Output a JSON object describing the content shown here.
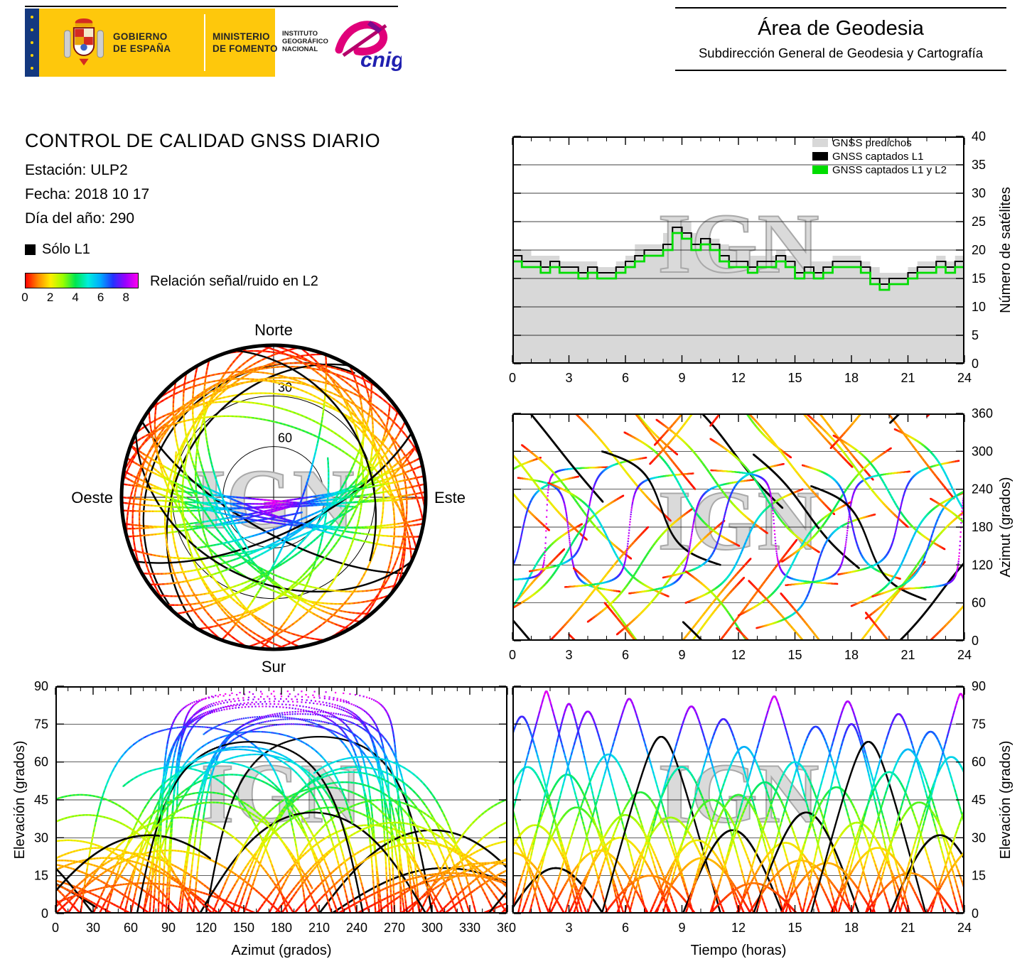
{
  "header": {
    "gobierno_line1": "GOBIERNO",
    "gobierno_line2": "DE ESPAÑA",
    "ministerio_line1": "MINISTERIO",
    "ministerio_line2": "DE FOMENTO",
    "ign_line1": "INSTITUTO",
    "ign_line2": "GEOGRÁFICO",
    "ign_line3": "NACIONAL",
    "cnig_label": "cnig",
    "area_title": "Área de Geodesia",
    "area_subtitle": "Subdirección General de Geodesia y Cartografía",
    "banner_yellow": "#fec80c",
    "flag_blue": "#14387f"
  },
  "info": {
    "title": "CONTROL DE CALIDAD GNSS DIARIO",
    "station": "Estación: ULP2",
    "date": "Fecha: 2018 10 17",
    "doy": "Día del año: 290",
    "l1_legend": "Sólo L1",
    "colorbar_label": "Relación señal/ruido en L2",
    "colorbar_ticks": [
      0,
      2,
      4,
      6,
      8
    ],
    "colorbar_max": 9
  },
  "skyplot": {
    "north": "Norte",
    "south": "Sur",
    "east": "Este",
    "west": "Oeste",
    "rings": [
      {
        "elevation": 30,
        "label": "30"
      },
      {
        "elevation": 60,
        "label": "60"
      }
    ],
    "watermark": "IGN"
  },
  "colormap": {
    "min": 0,
    "max": 9,
    "stops": [
      "#ff0000",
      "#ff8800",
      "#ffee00",
      "#99ff00",
      "#00e650",
      "#00eedd",
      "#00aaff",
      "#2233ff",
      "#9900ff",
      "#ff00ee"
    ]
  },
  "chart_data": [
    {
      "id": "sat-count",
      "type": "line",
      "xlabel": "",
      "ylabel": "Número de satélites",
      "xlim": [
        0,
        24
      ],
      "ylim": [
        0,
        40
      ],
      "xticks": [
        0,
        3,
        6,
        9,
        12,
        15,
        18,
        21,
        24
      ],
      "yticks": [
        0,
        5,
        10,
        15,
        20,
        25,
        30,
        35,
        40
      ],
      "yside": "right",
      "xminor": 1,
      "grid": "horizontal",
      "legend_position": "top-right",
      "watermark": "IGN",
      "x_step": 0.5,
      "series": [
        {
          "name": "GNSS predichos",
          "color": "#d8d8d8",
          "style": "filled-steps",
          "values": [
            20,
            20,
            19,
            19,
            19,
            18,
            18,
            18,
            18,
            17,
            17,
            18,
            19,
            21,
            21,
            21,
            23,
            26,
            25,
            23,
            23,
            22,
            21,
            20,
            19,
            19,
            19,
            19,
            20,
            19,
            18,
            18,
            18,
            18,
            19,
            19,
            19,
            18,
            17,
            16,
            16,
            16,
            17,
            18,
            18,
            19,
            18,
            19,
            20
          ]
        },
        {
          "name": "GNSS captados L1",
          "color": "#000000",
          "style": "steps",
          "values": [
            19,
            18,
            18,
            17,
            18,
            17,
            17,
            16,
            17,
            16,
            16,
            17,
            18,
            19,
            20,
            20,
            21,
            24,
            23,
            21,
            22,
            21,
            19,
            18,
            18,
            17,
            18,
            18,
            19,
            18,
            16,
            17,
            16,
            17,
            18,
            18,
            18,
            17,
            15,
            14,
            15,
            15,
            16,
            17,
            17,
            18,
            17,
            18,
            19
          ]
        },
        {
          "name": "GNSS captados L1 y L2",
          "color": "#00dd00",
          "style": "steps",
          "values": [
            18,
            17,
            17,
            16,
            17,
            16,
            16,
            15,
            16,
            15,
            15,
            16,
            17,
            18,
            19,
            19,
            20,
            23,
            22,
            20,
            21,
            20,
            18,
            17,
            17,
            16,
            17,
            17,
            18,
            17,
            15,
            16,
            15,
            16,
            17,
            17,
            17,
            16,
            14,
            13,
            14,
            14,
            15,
            16,
            16,
            17,
            16,
            17,
            18
          ]
        }
      ]
    },
    {
      "id": "azimuth-time",
      "type": "scatter",
      "xlabel": "",
      "ylabel": "Azimut (grados)",
      "xlim": [
        0,
        24
      ],
      "ylim": [
        0,
        360
      ],
      "xticks": [
        0,
        3,
        6,
        9,
        12,
        15,
        18,
        21,
        24
      ],
      "yticks": [
        0,
        60,
        120,
        180,
        240,
        300,
        360
      ],
      "yside": "right",
      "xminor": 1,
      "grid": "horizontal",
      "watermark": "IGN",
      "series_source": "passes",
      "x_field": "time_hours",
      "y_field": "azimuth_deg"
    },
    {
      "id": "elevation-azimuth",
      "type": "scatter",
      "xlabel": "Azimut (grados)",
      "ylabel": "Elevación (grados)",
      "xlim": [
        0,
        360
      ],
      "ylim": [
        0,
        90
      ],
      "xticks": [
        0,
        30,
        60,
        90,
        120,
        150,
        180,
        210,
        240,
        270,
        300,
        330,
        360
      ],
      "yticks": [
        0,
        15,
        30,
        45,
        60,
        75,
        90
      ],
      "yside": "left",
      "xminor": 10,
      "grid": "horizontal",
      "watermark": "IGN",
      "series_source": "passes",
      "x_field": "azimuth_deg",
      "y_field": "elevation_deg"
    },
    {
      "id": "elevation-time",
      "type": "scatter",
      "xlabel": "Tiempo (horas)",
      "ylabel": "Elevación (grados)",
      "xlim": [
        0,
        24
      ],
      "ylim": [
        0,
        90
      ],
      "xticks": [
        0,
        3,
        6,
        9,
        12,
        15,
        18,
        21,
        24
      ],
      "yticks": [
        0,
        15,
        30,
        45,
        60,
        75,
        90
      ],
      "yside": "right",
      "xminor": 1,
      "grid": "horizontal",
      "watermark": "IGN",
      "series_source": "passes",
      "x_field": "time_hours",
      "y_field": "elevation_deg"
    }
  ],
  "passes": [
    {
      "t0": -1.5,
      "dur": 6.0,
      "el": 70,
      "az": 200,
      "dir": 1,
      "c": 1.4
    },
    {
      "t0": -0.8,
      "dur": 5.5,
      "el": 34,
      "az": 265,
      "dir": -1,
      "c": 0.3
    },
    {
      "t0": 0.0,
      "dur": 5.5,
      "el": 24,
      "az": 55,
      "dir": 1,
      "c": 0.0
    },
    {
      "t0": 0.5,
      "dur": 6.0,
      "el": 78,
      "az": 170,
      "dir": 1,
      "c": 1.5
    },
    {
      "t0": 0.8,
      "dur": 5.8,
      "el": 58,
      "az": 95,
      "dir": 1,
      "c": 0.9
    },
    {
      "t0": 1.2,
      "dur": 5.5,
      "el": 35,
      "az": 250,
      "dir": -1,
      "c": 0.0
    },
    {
      "t0": 1.8,
      "dur": 6.5,
      "el": 88,
      "az": 185,
      "dir": 1,
      "c": 2.0
    },
    {
      "t0": 2.3,
      "dur": 5.0,
      "el": 18,
      "az": 310,
      "dir": -1,
      "c": 0.0,
      "l1_only": true
    },
    {
      "t0": 2.9,
      "dur": 6.0,
      "el": 55,
      "az": 140,
      "dir": 1,
      "c": 0.5
    },
    {
      "t0": 3.0,
      "dur": 5.4,
      "el": 83,
      "az": 168,
      "dir": -1,
      "c": 1.9
    },
    {
      "t0": 3.4,
      "dur": 5.8,
      "el": 42,
      "az": 220,
      "dir": -1,
      "c": 1.0
    },
    {
      "t0": 4.0,
      "dur": 6.2,
      "el": 80,
      "az": 200,
      "dir": 1,
      "c": 2.0
    },
    {
      "t0": 4.6,
      "dur": 5.2,
      "el": 25,
      "az": 90,
      "dir": 1,
      "c": 0.0
    },
    {
      "t0": 5.1,
      "dur": 6.4,
      "el": 63,
      "az": 160,
      "dir": -1,
      "c": 1.0
    },
    {
      "t0": 5.7,
      "dur": 5.4,
      "el": 30,
      "az": 280,
      "dir": -1,
      "c": 0.0
    },
    {
      "t0": 6.0,
      "dur": 5.5,
      "el": 39,
      "az": 25,
      "dir": -1,
      "c": 0.4
    },
    {
      "t0": 6.2,
      "dur": 6.8,
      "el": 85,
      "az": 175,
      "dir": 1,
      "c": 1.8
    },
    {
      "t0": 6.8,
      "dur": 5.6,
      "el": 48,
      "az": 120,
      "dir": 1,
      "c": 0.5
    },
    {
      "t0": 7.3,
      "dur": 4.8,
      "el": 15,
      "az": 330,
      "dir": -1,
      "c": 0.0
    },
    {
      "t0": 7.9,
      "dur": 6.3,
      "el": 70,
      "az": 210,
      "dir": -1,
      "c": 1.5,
      "l1_only": true
    },
    {
      "t0": 8.4,
      "dur": 5.7,
      "el": 38,
      "az": 100,
      "dir": 1,
      "c": 0.3
    },
    {
      "t0": 9.0,
      "dur": 6.1,
      "el": 58,
      "az": 240,
      "dir": -1,
      "c": 0.8
    },
    {
      "t0": 9.5,
      "dur": 6.6,
      "el": 82,
      "az": 165,
      "dir": 1,
      "c": 2.0
    },
    {
      "t0": 9.8,
      "dur": 5.0,
      "el": 29,
      "az": 10,
      "dir": 1,
      "c": 0.1
    },
    {
      "t0": 10.1,
      "dur": 5.1,
      "el": 22,
      "az": 40,
      "dir": 1,
      "c": 0.0
    },
    {
      "t0": 10.6,
      "dur": 5.9,
      "el": 45,
      "az": 260,
      "dir": -1,
      "c": 0.6
    },
    {
      "t0": 11.2,
      "dur": 6.4,
      "el": 77,
      "az": 190,
      "dir": 1,
      "c": 1.7
    },
    {
      "t0": 11.7,
      "dur": 5.3,
      "el": 33,
      "az": 300,
      "dir": -1,
      "c": 0.2,
      "l1_only": true
    },
    {
      "t0": 12.0,
      "dur": 5.6,
      "el": 47,
      "az": 20,
      "dir": -1,
      "c": 0.5
    },
    {
      "t0": 12.3,
      "dur": 6.2,
      "el": 66,
      "az": 150,
      "dir": 1,
      "c": 1.2
    },
    {
      "t0": 12.8,
      "dur": 4.6,
      "el": 12,
      "az": 70,
      "dir": 1,
      "c": 0.0
    },
    {
      "t0": 13.4,
      "dur": 5.8,
      "el": 52,
      "az": 230,
      "dir": -1,
      "c": 0.7
    },
    {
      "t0": 13.9,
      "dur": 6.7,
      "el": 86,
      "az": 180,
      "dir": -1,
      "c": 2.0
    },
    {
      "t0": 14.5,
      "dur": 5.2,
      "el": 28,
      "az": 290,
      "dir": -1,
      "c": 0.1
    },
    {
      "t0": 15.0,
      "dur": 6.0,
      "el": 60,
      "az": 130,
      "dir": 1,
      "c": 1.0
    },
    {
      "t0": 15.3,
      "dur": 5.5,
      "el": 21,
      "az": 5,
      "dir": -1,
      "c": 0.0
    },
    {
      "t0": 15.6,
      "dur": 5.6,
      "el": 40,
      "az": 205,
      "dir": -1,
      "c": 0.4,
      "l1_only": true
    },
    {
      "t0": 16.1,
      "dur": 6.3,
      "el": 74,
      "az": 110,
      "dir": 1,
      "c": 1.6
    },
    {
      "t0": 16.7,
      "dur": 4.9,
      "el": 20,
      "az": 345,
      "dir": -1,
      "c": 0.0
    },
    {
      "t0": 17.2,
      "dur": 5.8,
      "el": 50,
      "az": 215,
      "dir": 1,
      "c": 0.6
    },
    {
      "t0": 17.8,
      "dur": 6.6,
      "el": 84,
      "az": 178,
      "dir": 1,
      "c": 1.9
    },
    {
      "t0": 18.0,
      "dur": 5.2,
      "el": 75,
      "az": 188,
      "dir": -1,
      "c": 1.9
    },
    {
      "t0": 18.3,
      "dur": 5.4,
      "el": 36,
      "az": 270,
      "dir": -1,
      "c": 0.3
    },
    {
      "t0": 18.9,
      "dur": 6.1,
      "el": 68,
      "az": 155,
      "dir": -1,
      "c": 1.3,
      "l1_only": true
    },
    {
      "t0": 19.4,
      "dur": 5.0,
      "el": 26,
      "az": 35,
      "dir": 1,
      "c": 0.0
    },
    {
      "t0": 20.0,
      "dur": 5.9,
      "el": 56,
      "az": 235,
      "dir": -1,
      "c": 0.8
    },
    {
      "t0": 20.5,
      "dur": 6.4,
      "el": 79,
      "az": 195,
      "dir": 1,
      "c": 1.8
    },
    {
      "t0": 21.0,
      "dur": 6.0,
      "el": 65,
      "az": 145,
      "dir": 1,
      "c": 1.2
    },
    {
      "t0": 21.1,
      "dur": 4.7,
      "el": 16,
      "az": 315,
      "dir": -1,
      "c": 0.0
    },
    {
      "t0": 21.6,
      "dur": 5.7,
      "el": 44,
      "az": 125,
      "dir": 1,
      "c": 0.5
    },
    {
      "t0": 22.2,
      "dur": 6.2,
      "el": 72,
      "az": 160,
      "dir": 1,
      "c": 1.5
    },
    {
      "t0": 22.7,
      "dur": 5.3,
      "el": 31,
      "az": 75,
      "dir": 1,
      "c": 0.2,
      "l1_only": true
    },
    {
      "t0": 23.3,
      "dur": 6.0,
      "el": 62,
      "az": 245,
      "dir": -1,
      "c": 1.1
    },
    {
      "t0": 23.8,
      "dur": 6.5,
      "el": 87,
      "az": 172,
      "dir": 1,
      "c": 2.0
    },
    {
      "t0": 24.8,
      "dur": 5.6,
      "el": 27,
      "az": 85,
      "dir": 1,
      "c": 0.1
    },
    {
      "t0": 25.2,
      "dur": 6.0,
      "el": 54,
      "az": 135,
      "dir": -1,
      "c": 0.8
    }
  ]
}
